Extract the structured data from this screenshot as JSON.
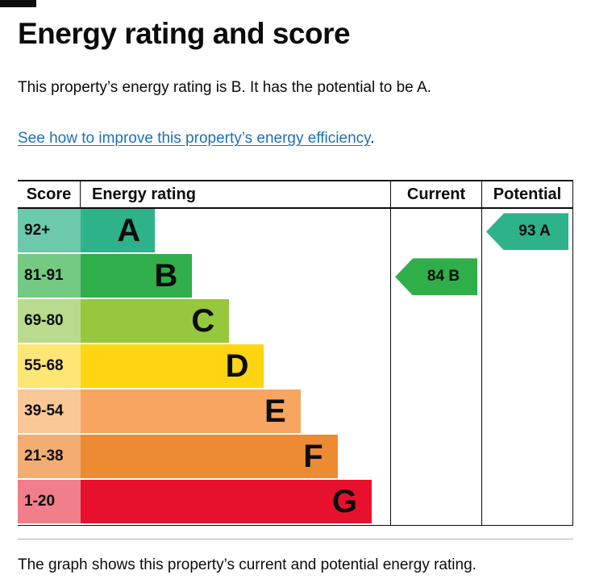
{
  "page": {
    "title": "Energy rating and score",
    "intro": "This property’s energy rating is B. It has the potential to be A.",
    "link_text": "See how to improve this property’s energy efficiency",
    "link_suffix": ".",
    "caption": "The graph shows this property’s current and potential energy rating."
  },
  "chart": {
    "headers": {
      "score": "Score",
      "rating": "Energy rating",
      "current": "Current",
      "potential": "Potential"
    },
    "bands": [
      {
        "score": "92+",
        "letter": "A",
        "color": "#2eb28b",
        "score_color": "#6cc9ab",
        "width_pct": 24
      },
      {
        "score": "81-91",
        "letter": "B",
        "color": "#2fae49",
        "score_color": "#74c983",
        "width_pct": 36
      },
      {
        "score": "69-80",
        "letter": "C",
        "color": "#95c83d",
        "score_color": "#b9db8d",
        "width_pct": 48
      },
      {
        "score": "55-68",
        "letter": "D",
        "color": "#ffd511",
        "score_color": "#ffe675",
        "width_pct": 59
      },
      {
        "score": "39-54",
        "letter": "E",
        "color": "#f7a561",
        "score_color": "#fac896",
        "width_pct": 71
      },
      {
        "score": "21-38",
        "letter": "F",
        "color": "#ed8b33",
        "score_color": "#f3ad70",
        "width_pct": 83
      },
      {
        "score": "1-20",
        "letter": "G",
        "color": "#e8112d",
        "score_color": "#f07e8b",
        "width_pct": 94
      }
    ],
    "current": {
      "label": "84 B",
      "band_index": 1,
      "color": "#2fae49"
    },
    "potential": {
      "label": "93 A",
      "band_index": 0,
      "color": "#2eb28b"
    }
  },
  "colors": {
    "text": "#0b0c0c",
    "link": "#1d70b8",
    "border": "#0b0c0c",
    "divider": "#b1b4b6"
  },
  "chart_data": {
    "type": "bar",
    "title": "Energy rating and score",
    "categories": [
      "A",
      "B",
      "C",
      "D",
      "E",
      "F",
      "G"
    ],
    "score_ranges": [
      "92+",
      "81-91",
      "69-80",
      "55-68",
      "39-54",
      "21-38",
      "1-20"
    ],
    "bar_lengths_pct": [
      24,
      36,
      48,
      59,
      71,
      83,
      94
    ],
    "band_colors": [
      "#2eb28b",
      "#2fae49",
      "#95c83d",
      "#ffd511",
      "#f7a561",
      "#ed8b33",
      "#e8112d"
    ],
    "current": {
      "score": 84,
      "band": "B"
    },
    "potential": {
      "score": 93,
      "band": "A"
    },
    "columns": [
      "Score",
      "Energy rating",
      "Current",
      "Potential"
    ],
    "legend_position": "none",
    "grid": false
  }
}
